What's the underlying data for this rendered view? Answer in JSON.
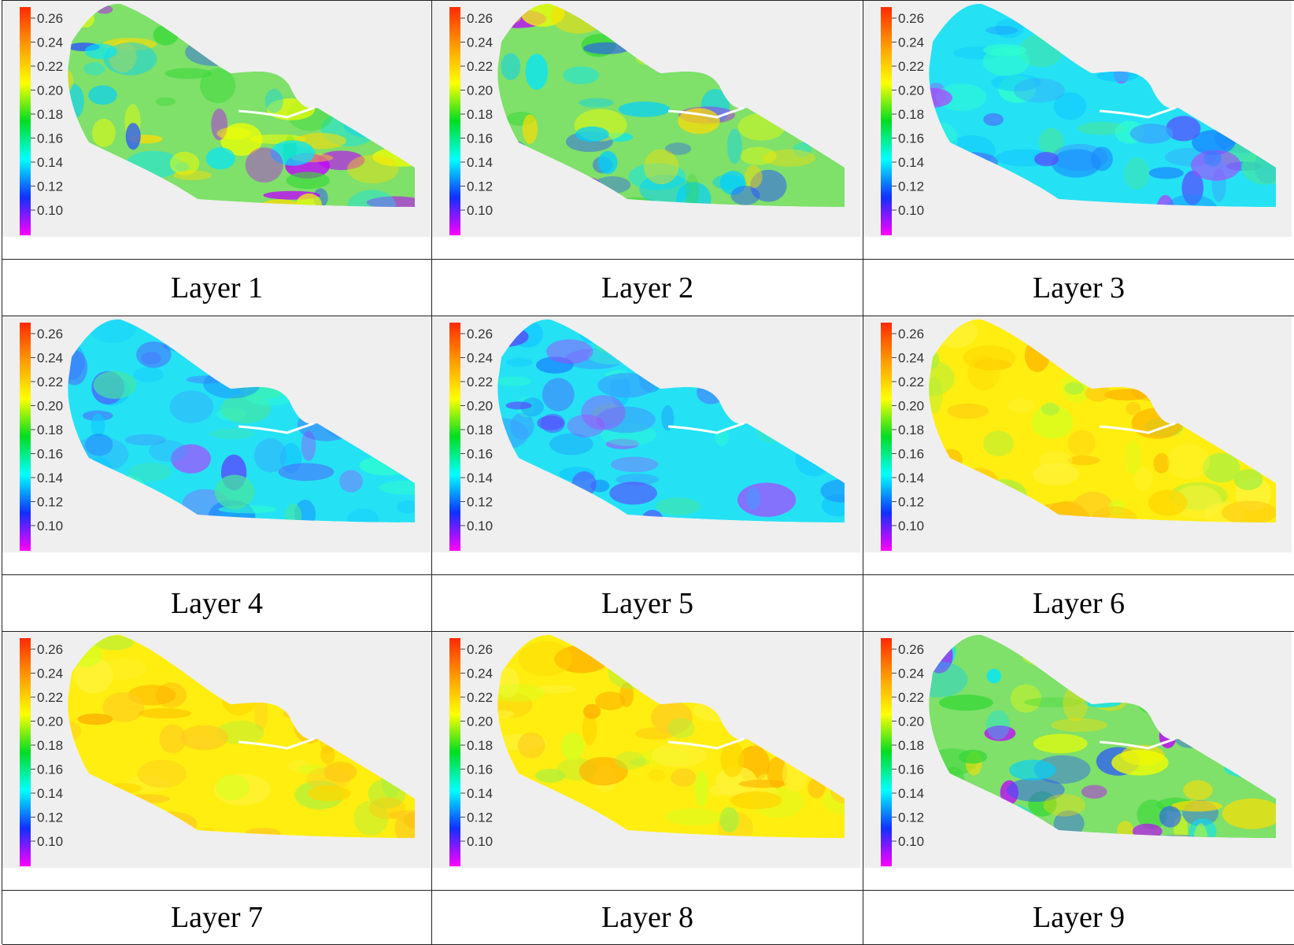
{
  "colorbar": {
    "ticks": [
      "0.26",
      "0.24",
      "0.22",
      "0.20",
      "0.18",
      "0.16",
      "0.14",
      "0.12",
      "0.10"
    ],
    "colors": [
      "#ff2a00",
      "#ff9a00",
      "#ffff00",
      "#00dd22",
      "#00ffff",
      "#1030ff",
      "#ff00ff"
    ]
  },
  "panels": [
    {
      "label": "Layer 1",
      "scheme": "mixed"
    },
    {
      "label": "Layer 2",
      "scheme": "mixed"
    },
    {
      "label": "Layer 3",
      "scheme": "cyan"
    },
    {
      "label": "Layer 4",
      "scheme": "cyan"
    },
    {
      "label": "Layer 5",
      "scheme": "cyan"
    },
    {
      "label": "Layer 6",
      "scheme": "yellow"
    },
    {
      "label": "Layer 7",
      "scheme": "yellow"
    },
    {
      "label": "Layer 8",
      "scheme": "yellow"
    },
    {
      "label": "Layer 9",
      "scheme": "mixed"
    }
  ]
}
